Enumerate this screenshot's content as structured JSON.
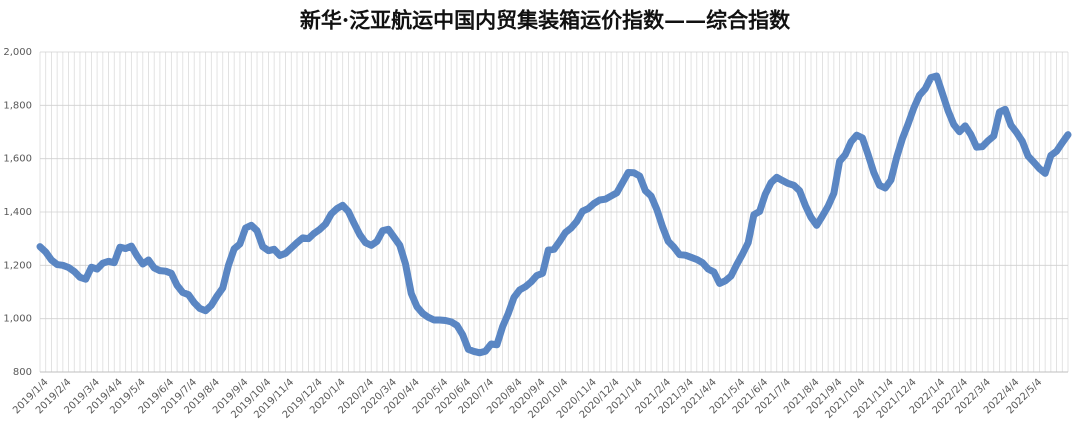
{
  "chart_data": {
    "type": "line",
    "title": "新华·泛亚航运中国内贸集装箱运价指数——综合指数",
    "color": "#5a86c3",
    "grid": true,
    "ylim": [
      800,
      2000
    ],
    "yticks": [
      {
        "value": 800,
        "label": "800"
      },
      {
        "value": 1000,
        "label": "1,000"
      },
      {
        "value": 1200,
        "label": "1,200"
      },
      {
        "value": 1400,
        "label": "1,400"
      },
      {
        "value": 1600,
        "label": "1,600"
      },
      {
        "value": 1800,
        "label": "1,800"
      },
      {
        "value": 2000,
        "label": "2,000"
      }
    ],
    "categories": [
      "2019/1/4",
      null,
      null,
      null,
      "2019/2/4",
      null,
      null,
      null,
      null,
      "2019/3/4",
      null,
      null,
      null,
      "2019/4/4",
      null,
      null,
      null,
      "2019/5/4",
      null,
      null,
      null,
      null,
      "2019/6/4",
      null,
      null,
      null,
      "2019/7/4",
      null,
      null,
      null,
      "2019/8/4",
      null,
      null,
      null,
      null,
      "2019/9/4",
      null,
      null,
      null,
      "2019/10/4",
      null,
      null,
      null,
      "2019/11/4",
      null,
      null,
      null,
      null,
      "2019/12/4",
      null,
      null,
      null,
      "2020/1/4",
      null,
      null,
      null,
      null,
      "2020/2/4",
      null,
      null,
      null,
      "2020/3/4",
      null,
      null,
      null,
      "2020/4/4",
      null,
      null,
      null,
      null,
      "2020/5/4",
      null,
      null,
      null,
      "2020/6/4",
      null,
      null,
      null,
      "2020/7/4",
      null,
      null,
      null,
      null,
      "2020/8/4",
      null,
      null,
      null,
      "2020/9/4",
      null,
      null,
      null,
      "2020/10/4",
      null,
      null,
      null,
      null,
      "2020/11/4",
      null,
      null,
      null,
      "2020/12/4",
      null,
      null,
      null,
      "2021/1/4",
      null,
      null,
      null,
      null,
      "2021/2/4",
      null,
      null,
      null,
      "2021/3/4",
      null,
      null,
      null,
      "2021/4/4",
      null,
      null,
      null,
      null,
      "2021/5/4",
      null,
      null,
      null,
      "2021/6/4",
      null,
      null,
      null,
      "2021/7/4",
      null,
      null,
      null,
      null,
      "2021/8/4",
      null,
      null,
      null,
      "2021/9/4",
      null,
      null,
      null,
      "2021/10/4",
      null,
      null,
      null,
      null,
      "2021/11/4",
      null,
      null,
      null,
      "2021/12/4",
      null,
      null,
      null,
      null,
      "2022/1/4",
      null,
      null,
      null,
      "2022/2/4",
      null,
      null,
      null,
      "2022/3/4",
      null,
      null,
      null,
      null,
      "2022/4/4",
      null,
      null,
      null,
      "2022/5/4",
      null,
      null,
      null,
      null,
      null,
      null
    ],
    "values": [
      1270,
      1250,
      1220,
      1203,
      1200,
      1192,
      1177,
      1155,
      1148,
      1193,
      1186,
      1208,
      1215,
      1210,
      1268,
      1263,
      1272,
      1235,
      1205,
      1220,
      1190,
      1180,
      1178,
      1170,
      1125,
      1098,
      1090,
      1060,
      1038,
      1030,
      1050,
      1085,
      1115,
      1200,
      1262,
      1280,
      1340,
      1350,
      1330,
      1270,
      1255,
      1260,
      1237,
      1245,
      1265,
      1285,
      1303,
      1300,
      1320,
      1335,
      1355,
      1393,
      1413,
      1425,
      1402,
      1357,
      1315,
      1285,
      1275,
      1290,
      1330,
      1335,
      1305,
      1275,
      1205,
      1095,
      1045,
      1020,
      1005,
      995,
      995,
      993,
      988,
      975,
      940,
      885,
      877,
      872,
      878,
      905,
      902,
      970,
      1020,
      1080,
      1108,
      1120,
      1138,
      1162,
      1170,
      1257,
      1260,
      1290,
      1323,
      1340,
      1365,
      1403,
      1413,
      1432,
      1445,
      1448,
      1460,
      1472,
      1510,
      1548,
      1547,
      1535,
      1480,
      1460,
      1410,
      1345,
      1290,
      1268,
      1240,
      1238,
      1230,
      1222,
      1210,
      1186,
      1175,
      1132,
      1142,
      1160,
      1203,
      1242,
      1285,
      1390,
      1402,
      1467,
      1510,
      1530,
      1518,
      1507,
      1500,
      1480,
      1425,
      1380,
      1350,
      1385,
      1422,
      1470,
      1590,
      1615,
      1663,
      1688,
      1678,
      1615,
      1548,
      1500,
      1490,
      1520,
      1605,
      1675,
      1730,
      1790,
      1838,
      1862,
      1904,
      1910,
      1845,
      1780,
      1728,
      1701,
      1723,
      1690,
      1643,
      1645,
      1667,
      1685,
      1775,
      1785,
      1726,
      1698,
      1665,
      1610,
      1587,
      1563,
      1545,
      1612,
      1628,
      1660,
      1690
    ]
  }
}
